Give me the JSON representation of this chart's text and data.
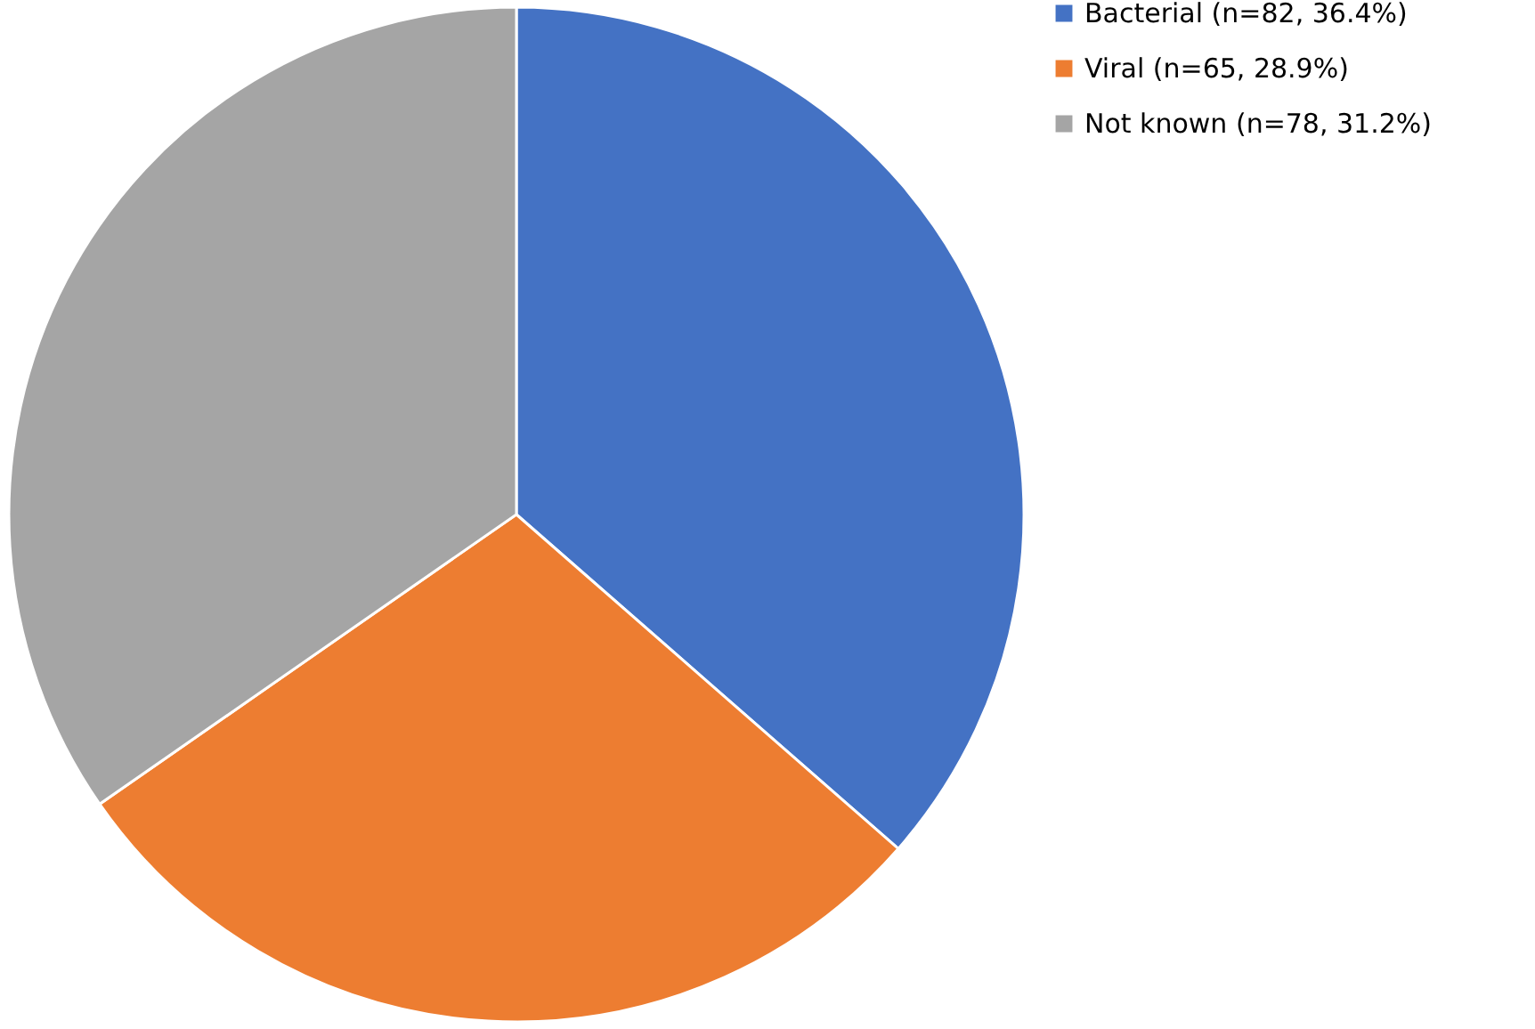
{
  "chart_data": {
    "type": "pie",
    "categories": [
      "Bacterial (n=82, 36.4%)",
      "Viral (n=65, 28.9%)",
      "Not known (n=78, 31.2%)"
    ],
    "values": [
      82,
      65,
      78
    ],
    "colors": [
      "#4472c4",
      "#ed7d31",
      "#a5a5a5"
    ],
    "legend": "right"
  }
}
